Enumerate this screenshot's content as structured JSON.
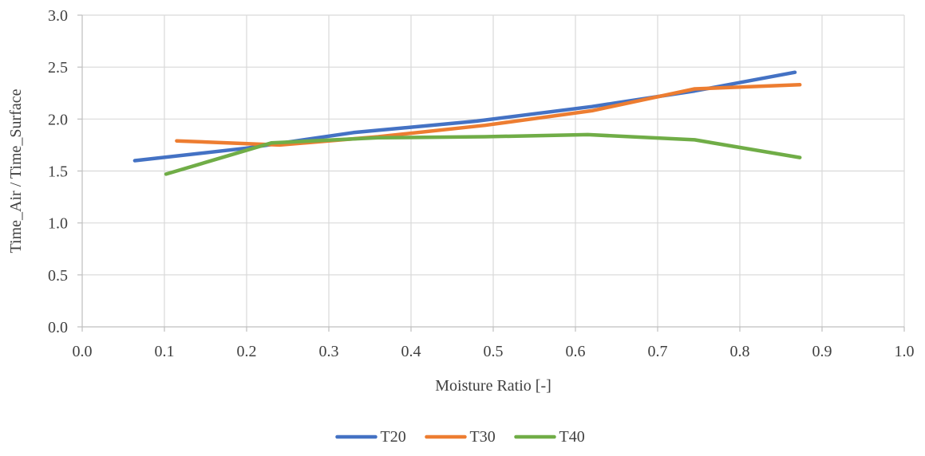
{
  "chart_data": {
    "type": "line",
    "title": "",
    "xlabel": "Moisture Ratio [-]",
    "ylabel": "Time_Air / Time_Surface",
    "xlim": [
      0.0,
      1.0
    ],
    "ylim": [
      0.0,
      3.0
    ],
    "xticks": [
      0.0,
      0.1,
      0.2,
      0.3,
      0.4,
      0.5,
      0.6,
      0.7,
      0.8,
      0.9,
      1.0
    ],
    "yticks": [
      0.0,
      0.5,
      1.0,
      1.5,
      2.0,
      2.5,
      3.0
    ],
    "xtick_labels": [
      "0.0",
      "0.1",
      "0.2",
      "0.3",
      "0.4",
      "0.5",
      "0.6",
      "0.7",
      "0.8",
      "0.9",
      "1.0"
    ],
    "ytick_labels": [
      "0.0",
      "0.5",
      "1.0",
      "1.5",
      "2.0",
      "2.5",
      "3.0"
    ],
    "grid": true,
    "legend_position": "bottom-center",
    "series": [
      {
        "name": "T20",
        "color": "#4472c4",
        "x": [
          0.064,
          0.2,
          0.33,
          0.48,
          0.62,
          0.745,
          0.867
        ],
        "y": [
          1.6,
          1.72,
          1.87,
          1.98,
          2.12,
          2.27,
          2.45
        ]
      },
      {
        "name": "T30",
        "color": "#ed7d31",
        "x": [
          0.115,
          0.24,
          0.36,
          0.49,
          0.62,
          0.745,
          0.873
        ],
        "y": [
          1.79,
          1.75,
          1.83,
          1.94,
          2.08,
          2.29,
          2.33
        ]
      },
      {
        "name": "T40",
        "color": "#70ad47",
        "x": [
          0.102,
          0.23,
          0.36,
          0.49,
          0.615,
          0.745,
          0.873
        ],
        "y": [
          1.47,
          1.77,
          1.82,
          1.83,
          1.85,
          1.8,
          1.63
        ]
      }
    ]
  }
}
